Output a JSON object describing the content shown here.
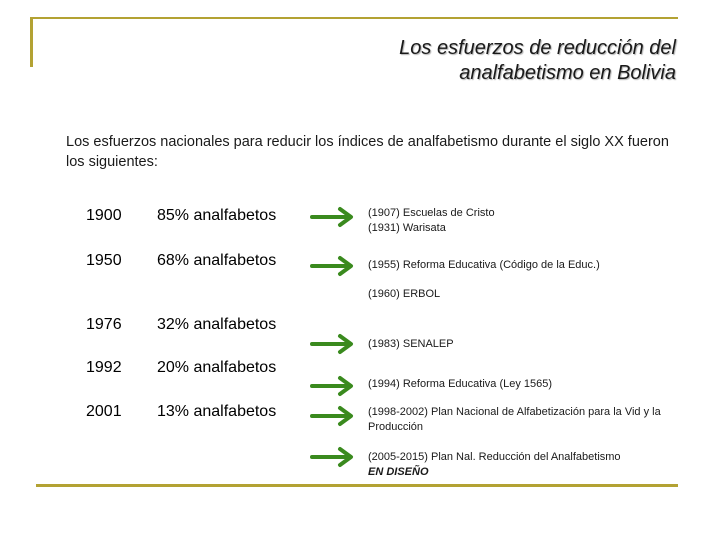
{
  "title": {
    "line1": "Los esfuerzos de reducción del",
    "line2": "analfabetismo en Bolivia"
  },
  "intro": "Los esfuerzos nacionales para reducir los índices de analfabetismo durante el siglo XX fueron los siguientes:",
  "rows": [
    {
      "year": "1900",
      "pct": "85% analfabetos"
    },
    {
      "year": "1950",
      "pct": "68% analfabetos"
    },
    {
      "year": "1976",
      "pct": "32% analfabetos"
    },
    {
      "year": "1992",
      "pct": "20% analfabetos"
    },
    {
      "year": "2001",
      "pct": "13% analfabetos"
    }
  ],
  "notes": {
    "n1a": "(1907) Escuelas de Cristo",
    "n1b": "(1931) Warisata",
    "n2": "(1955) Reforma Educativa (Código de la Educ.)",
    "n3": "(1960) ERBOL",
    "n4": "(1983) SENALEP",
    "n5": "(1994) Reforma Educativa (Ley 1565)",
    "n6": "(1998-2002) Plan Nacional de Alfabetización para la Vid y la Producción",
    "n7": "(2005-2015) Plan Nal. Reducción del Analfabetismo",
    "n7_status": "EN DISEÑO"
  },
  "colors": {
    "frame": "#b3a233",
    "arrow": "#3a8a1e"
  }
}
